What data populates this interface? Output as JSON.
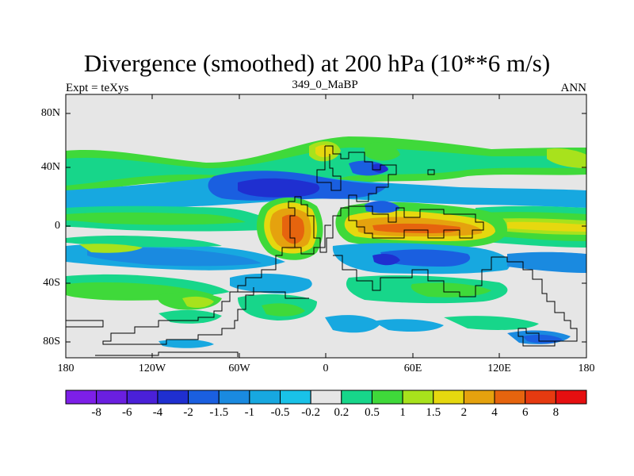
{
  "title": "Divergence (smoothed) at 200 hPa (10**6 m/s)",
  "subtitle_left": "Expt = teXys",
  "subtitle_center": "349_0_MaBP",
  "subtitle_right": "ANN",
  "lat_ticks": [
    "80N",
    "40N",
    "0",
    "40S",
    "80S"
  ],
  "lon_ticks": [
    "180",
    "120W",
    "60W",
    "0",
    "60E",
    "120E",
    "180"
  ],
  "colorbar": {
    "labels": [
      "-8",
      "-6",
      "-4",
      "-2",
      "-1.5",
      "-1",
      "-0.5",
      "-0.2",
      "0.2",
      "0.5",
      "1",
      "1.5",
      "2",
      "4",
      "6",
      "8"
    ],
    "colors": [
      "#7d1fe8",
      "#6a1fe0",
      "#4a20d8",
      "#1f2fd0",
      "#1a5fe0",
      "#1a8ae0",
      "#17a8e0",
      "#19c2e8",
      "#e6e6e6",
      "#17d68a",
      "#3fd93a",
      "#a8e21c",
      "#e6d80f",
      "#e5a20e",
      "#e6640e",
      "#e63a10",
      "#e60f10"
    ]
  },
  "map_colors": {
    "background": "#e6e6e6",
    "coast": "#000000"
  }
}
